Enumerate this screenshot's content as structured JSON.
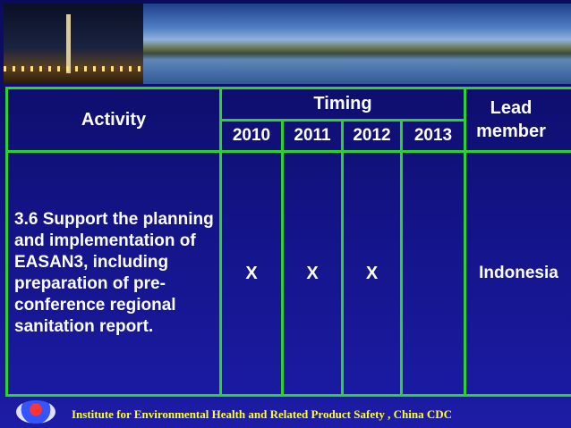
{
  "header": {
    "activity": "Activity",
    "timing": "Timing",
    "years": [
      "2010",
      "2011",
      "2012",
      "2013"
    ],
    "lead": "Lead member"
  },
  "rows": [
    {
      "activity": "3.6 Support the planning and implementation of EASAN3, including preparation of pre-conference regional sanitation report.",
      "marks": [
        "X",
        "X",
        "X"
      ],
      "lead": "Indonesia"
    }
  ],
  "footer": "Institute for Environmental Health and Related Product Safety , China CDC"
}
